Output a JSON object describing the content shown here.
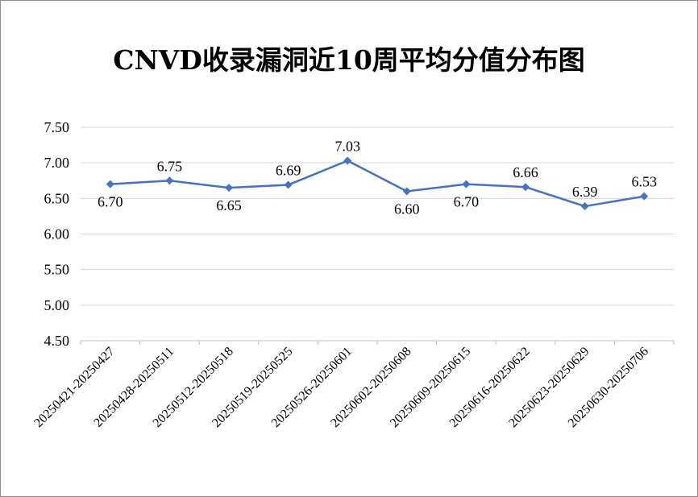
{
  "chart_data": {
    "type": "line",
    "title": "CNVD收录漏洞近10周平均分值分布图",
    "xlabel": "",
    "ylabel": "",
    "categories": [
      "20250421-20250427",
      "20250428-20250511",
      "20250512-20250518",
      "20250519-20250525",
      "20250526-20250601",
      "20250602-20250608",
      "20250609-20250615",
      "20250616-20250622",
      "20250623-20250629",
      "20250630-20250706"
    ],
    "series": [
      {
        "values": [
          6.7,
          6.75,
          6.65,
          6.69,
          7.03,
          6.6,
          6.7,
          6.66,
          6.39,
          6.53
        ],
        "labels": [
          "6.70",
          "6.75",
          "6.65",
          "6.69",
          "7.03",
          "6.60",
          "6.70",
          "6.66",
          "6.39",
          "6.53"
        ],
        "label_positions": [
          "below",
          "above",
          "below",
          "above",
          "above",
          "below",
          "below",
          "above",
          "above",
          "above"
        ]
      }
    ],
    "yticks": [
      "4.50",
      "5.00",
      "5.50",
      "6.00",
      "6.50",
      "7.00",
      "7.50"
    ],
    "ylim": [
      4.5,
      7.5
    ],
    "grid": true,
    "legend": "none",
    "colors": {
      "line": "#4472C4",
      "grid": "#d9d9d9",
      "axis": "#bfbfbf",
      "text": "#000000"
    }
  }
}
